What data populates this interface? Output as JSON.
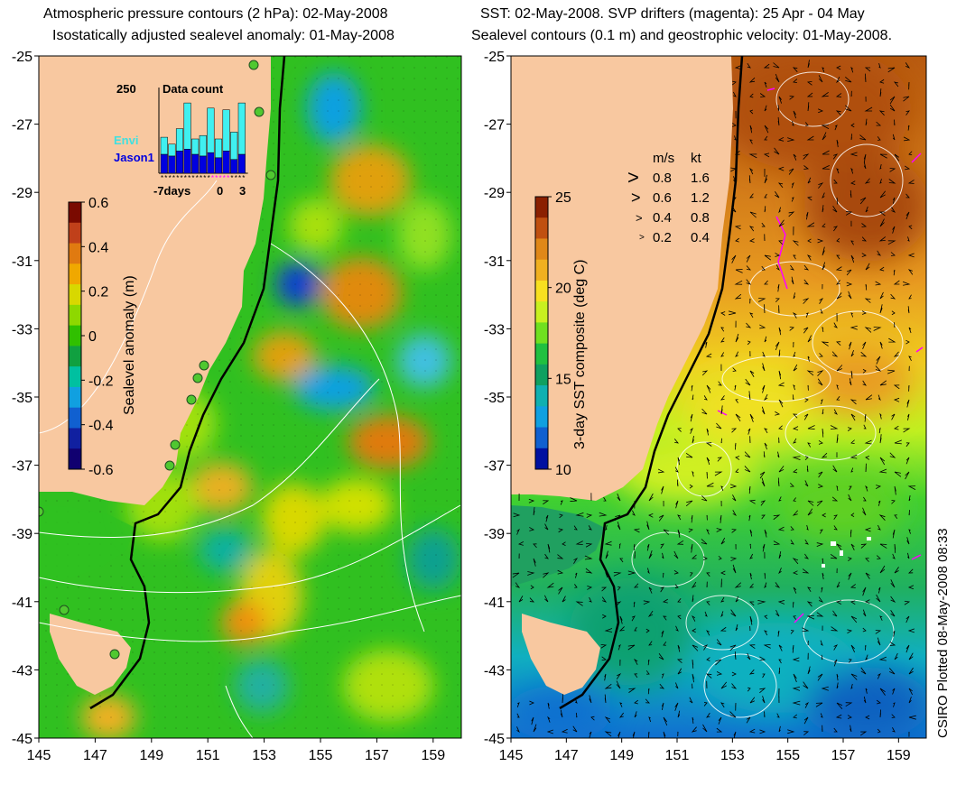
{
  "left": {
    "title_line1": "Atmospheric pressure contours (2 hPa): 02-May-2008",
    "title_line2": "Isostatically adjusted sealevel anomaly: 01-May-2008",
    "colorbar": {
      "label": "Sealevel anomaly (m)",
      "ticks": [
        "0.6",
        "0.4",
        "0.2",
        "0",
        "-0.2",
        "-0.4",
        "-0.6"
      ],
      "colors": [
        "#7a0a00",
        "#c0401a",
        "#e07a10",
        "#f0a800",
        "#d8d800",
        "#8ed800",
        "#30c000",
        "#10a040",
        "#00c0a0",
        "#10a0e0",
        "#1060d0",
        "#1020a0",
        "#100070"
      ]
    },
    "inset": {
      "title": "Data count",
      "ymax_label": "250",
      "legend_envi": "Envi",
      "legend_jason": "Jason1",
      "xlabel_days": "-7days",
      "xlabel_zero": "0",
      "xlabel_three": "3",
      "bars_total": [
        105,
        85,
        130,
        205,
        100,
        110,
        190,
        100,
        185,
        120,
        205
      ],
      "bars_jason": [
        55,
        50,
        65,
        70,
        55,
        50,
        60,
        45,
        65,
        40,
        55
      ],
      "colors": {
        "envi": "#40f0f0",
        "jason": "#0000e0",
        "envi_label": "#40e0e0",
        "jason_label": "#0000e0"
      }
    }
  },
  "right": {
    "title_line1": "SST: 02-May-2008. SVP drifters (magenta): 25 Apr - 04 May",
    "title_line2": "Sealevel contours (0.1 m) and geostrophic velocity: 01-May-2008.",
    "colorbar": {
      "label": "3-day SST composite (deg C)",
      "ticks": [
        "25",
        "20",
        "15",
        "10"
      ],
      "colors": [
        "#8b2000",
        "#c05010",
        "#e08818",
        "#f0b020",
        "#f8e020",
        "#c8f020",
        "#70e020",
        "#20c040",
        "#10a060",
        "#10b0b0",
        "#10a0e0",
        "#1060d0",
        "#0010a0"
      ]
    },
    "speed_legend": {
      "header_ms": "m/s",
      "header_kt": "kt",
      "rows": [
        {
          "ms": "0.8",
          "kt": "1.6"
        },
        {
          "ms": "0.6",
          "kt": "1.2"
        },
        {
          "ms": "0.4",
          "kt": "0.8"
        },
        {
          "ms": "0.2",
          "kt": "0.4"
        }
      ]
    },
    "plotted_label": "CSIRO Plotted 08-May-2008 08:33"
  },
  "axes": {
    "y_ticks": [
      "-25",
      "-27",
      "-29",
      "-31",
      "-33",
      "-35",
      "-37",
      "-39",
      "-41",
      "-43",
      "-45"
    ],
    "x_ticks": [
      "145",
      "147",
      "149",
      "151",
      "153",
      "155",
      "157",
      "159"
    ],
    "lat_range": [
      -45,
      -25
    ],
    "lon_range": [
      145,
      160
    ]
  },
  "colors": {
    "land": "#f8c8a0",
    "coast": "#000000",
    "magenta": "#ff00ff"
  }
}
